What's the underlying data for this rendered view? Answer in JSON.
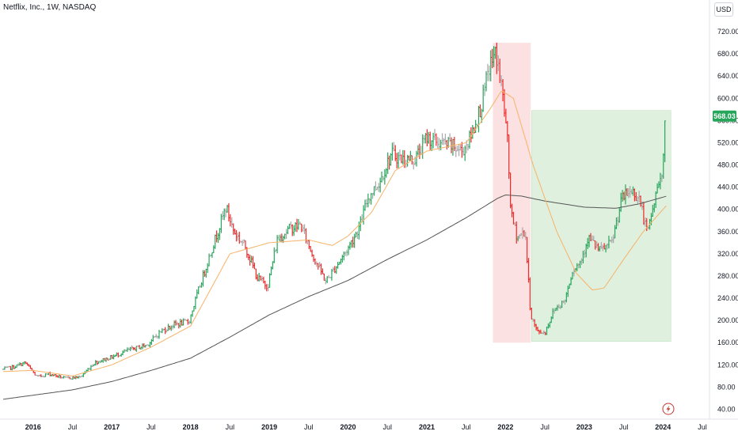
{
  "header": {
    "title": "Netflix, Inc., 1W, NASDAQ",
    "currency_label": "USD"
  },
  "colors": {
    "up": "#26a65b",
    "down": "#ef2a2a",
    "neutral": "#a8a8a8",
    "ma_fast": "#f7b267",
    "ma_slow": "#555555",
    "red_zone": "#fbe1e1",
    "green_zone": "#dff0df",
    "badge": "#26a65b"
  },
  "icons": {
    "flash": "lightning-icon"
  },
  "chart_data": {
    "type": "candlestick",
    "title": "Netflix, Inc., 1W, NASDAQ",
    "currency": "USD",
    "y_ticks": [
      "40.00",
      "80.00",
      "120.00",
      "160.00",
      "200.00",
      "240.00",
      "280.00",
      "320.00",
      "360.00",
      "400.00",
      "440.00",
      "480.00",
      "520.00",
      "560.00",
      "600.00",
      "640.00",
      "680.00",
      "720.00"
    ],
    "y_range": [
      25,
      760
    ],
    "x_range": [
      2015.62,
      2024.52
    ],
    "x_ticks": [
      {
        "label": "2016",
        "x": 2016.0
      },
      {
        "label": "Jul",
        "x": 2016.5
      },
      {
        "label": "2017",
        "x": 2017.0
      },
      {
        "label": "Jul",
        "x": 2017.5
      },
      {
        "label": "2018",
        "x": 2018.0
      },
      {
        "label": "Jul",
        "x": 2018.5
      },
      {
        "label": "2019",
        "x": 2019.0
      },
      {
        "label": "Jul",
        "x": 2019.5
      },
      {
        "label": "2020",
        "x": 2020.0
      },
      {
        "label": "Jul",
        "x": 2020.5
      },
      {
        "label": "2021",
        "x": 2021.0
      },
      {
        "label": "Jul",
        "x": 2021.5
      },
      {
        "label": "2022",
        "x": 2022.0
      },
      {
        "label": "Jul",
        "x": 2022.5
      },
      {
        "label": "2023",
        "x": 2023.0
      },
      {
        "label": "Jul",
        "x": 2023.5
      },
      {
        "label": "2024",
        "x": 2024.0
      },
      {
        "label": "Jul",
        "x": 2024.5
      }
    ],
    "price_path": [
      [
        2015.62,
        112
      ],
      [
        2015.75,
        116
      ],
      [
        2015.9,
        124
      ],
      [
        2016.05,
        98
      ],
      [
        2016.2,
        104
      ],
      [
        2016.4,
        96
      ],
      [
        2016.6,
        98
      ],
      [
        2016.78,
        124
      ],
      [
        2017.0,
        134
      ],
      [
        2017.2,
        146
      ],
      [
        2017.45,
        156
      ],
      [
        2017.62,
        180
      ],
      [
        2017.78,
        192
      ],
      [
        2017.98,
        198
      ],
      [
        2018.1,
        254
      ],
      [
        2018.25,
        320
      ],
      [
        2018.45,
        404
      ],
      [
        2018.55,
        360
      ],
      [
        2018.7,
        332
      ],
      [
        2018.85,
        276
      ],
      [
        2018.98,
        262
      ],
      [
        2019.1,
        345
      ],
      [
        2019.25,
        365
      ],
      [
        2019.4,
        372
      ],
      [
        2019.55,
        318
      ],
      [
        2019.72,
        270
      ],
      [
        2019.85,
        298
      ],
      [
        2020.0,
        330
      ],
      [
        2020.15,
        370
      ],
      [
        2020.25,
        420
      ],
      [
        2020.4,
        450
      ],
      [
        2020.55,
        500
      ],
      [
        2020.7,
        490
      ],
      [
        2020.85,
        490
      ],
      [
        2021.0,
        530
      ],
      [
        2021.15,
        520
      ],
      [
        2021.3,
        515
      ],
      [
        2021.45,
        505
      ],
      [
        2021.55,
        528
      ],
      [
        2021.7,
        590
      ],
      [
        2021.8,
        660
      ],
      [
        2021.88,
        682
      ],
      [
        2021.96,
        610
      ],
      [
        2022.02,
        532
      ],
      [
        2022.07,
        390
      ],
      [
        2022.15,
        350
      ],
      [
        2022.25,
        360
      ],
      [
        2022.32,
        210
      ],
      [
        2022.4,
        180
      ],
      [
        2022.5,
        178
      ],
      [
        2022.62,
        220
      ],
      [
        2022.75,
        235
      ],
      [
        2022.85,
        290
      ],
      [
        2022.95,
        305
      ],
      [
        2023.05,
        350
      ],
      [
        2023.2,
        325
      ],
      [
        2023.35,
        340
      ],
      [
        2023.48,
        420
      ],
      [
        2023.6,
        434
      ],
      [
        2023.7,
        420
      ],
      [
        2023.8,
        355
      ],
      [
        2023.9,
        420
      ],
      [
        2024.0,
        480
      ],
      [
        2024.03,
        568
      ]
    ],
    "ma_fast": [
      [
        2015.62,
        108
      ],
      [
        2016.0,
        110
      ],
      [
        2016.5,
        100
      ],
      [
        2017.0,
        120
      ],
      [
        2017.5,
        152
      ],
      [
        2018.0,
        190
      ],
      [
        2018.5,
        320
      ],
      [
        2019.0,
        340
      ],
      [
        2019.5,
        345
      ],
      [
        2019.8,
        335
      ],
      [
        2020.0,
        352
      ],
      [
        2020.3,
        395
      ],
      [
        2020.6,
        470
      ],
      [
        2021.0,
        505
      ],
      [
        2021.5,
        520
      ],
      [
        2021.8,
        580
      ],
      [
        2021.95,
        614
      ],
      [
        2022.1,
        600
      ],
      [
        2022.35,
        480
      ],
      [
        2022.65,
        360
      ],
      [
        2022.9,
        285
      ],
      [
        2023.1,
        255
      ],
      [
        2023.25,
        258
      ],
      [
        2023.5,
        310
      ],
      [
        2023.75,
        360
      ],
      [
        2024.05,
        408
      ]
    ],
    "ma_slow": [
      [
        2015.62,
        58
      ],
      [
        2016.5,
        75
      ],
      [
        2017.0,
        90
      ],
      [
        2017.5,
        110
      ],
      [
        2018.0,
        132
      ],
      [
        2018.5,
        170
      ],
      [
        2019.0,
        210
      ],
      [
        2019.5,
        243
      ],
      [
        2020.0,
        272
      ],
      [
        2020.5,
        310
      ],
      [
        2021.0,
        345
      ],
      [
        2021.5,
        385
      ],
      [
        2021.9,
        420
      ],
      [
        2022.0,
        426
      ],
      [
        2022.2,
        424
      ],
      [
        2022.5,
        415
      ],
      [
        2023.0,
        404
      ],
      [
        2023.4,
        402
      ],
      [
        2023.7,
        410
      ],
      [
        2024.05,
        424
      ]
    ],
    "zones": [
      {
        "name": "decline-zone",
        "x0": 2021.84,
        "x1": 2022.32,
        "y0": 160,
        "y1": 700,
        "color": "#fbe1e1"
      },
      {
        "name": "recovery-zone",
        "x0": 2022.33,
        "x1": 2024.1,
        "y0": 162,
        "y1": 578,
        "color": "#dff0df"
      }
    ],
    "last_price": {
      "label": "568.03",
      "value": 568.03
    }
  }
}
